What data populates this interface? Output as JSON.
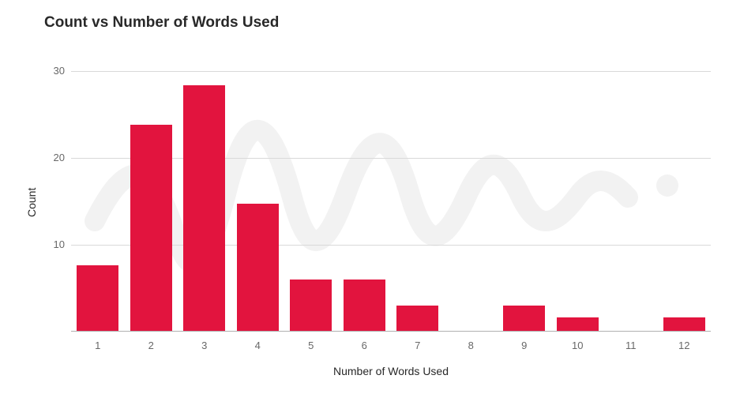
{
  "chart": {
    "type": "bar",
    "title": "Count vs Number of Words Used",
    "title_fontsize": 19,
    "title_color": "#282828",
    "xlabel": "Number of Words Used",
    "ylabel": "Count",
    "axis_label_fontsize": 14,
    "axis_label_color": "#282828",
    "tick_fontsize": 13,
    "tick_color": "#686868",
    "background_color": "#ffffff",
    "grid_color": "#d9d9d9",
    "axis_line_color": "#b0b0b0",
    "bar_color": "#e2143e",
    "bar_width": 0.78,
    "categories": [
      "1",
      "2",
      "3",
      "4",
      "5",
      "6",
      "7",
      "8",
      "9",
      "10",
      "11",
      "12"
    ],
    "values": [
      7.6,
      23.8,
      28.4,
      14.7,
      6.0,
      6.0,
      3.0,
      0,
      3.0,
      1.6,
      0,
      1.6
    ],
    "ylim": [
      0,
      30
    ],
    "yticks": [
      0,
      10,
      20,
      30
    ],
    "watermark_color": "#f2f2f2"
  }
}
